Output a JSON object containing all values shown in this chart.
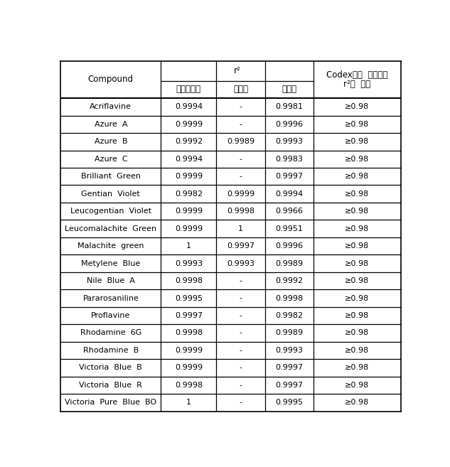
{
  "compounds": [
    "Acriflavine",
    "Azure  A",
    "Azure  B",
    "Azure  C",
    "Brilliant  Green",
    "Gentian  Violet",
    "Leucogentian  Violet",
    "Leucomalachite  Green",
    "Malachite  green",
    "Metylene  Blue",
    "Nile  Blue  A",
    "Pararosaniline",
    "Proflavine",
    "Rhodamine  6G",
    "Rhodamine  B",
    "Victoria  Blue  B",
    "Victoria  Blue  R",
    "Victoria  Pure  Blue  BO"
  ],
  "col1": [
    "0.9994",
    "0.9999",
    "0.9992",
    "0.9994",
    "0.9999",
    "0.9982",
    "0.9999",
    "0.9999",
    "1",
    "0.9993",
    "0.9998",
    "0.9995",
    "0.9997",
    "0.9998",
    "0.9999",
    "0.9999",
    "0.9998",
    "1"
  ],
  "col2": [
    "-",
    "-",
    "0.9989",
    "-",
    "-",
    "0.9999",
    "0.9998",
    "1",
    "0.9997",
    "0.9993",
    "-",
    "-",
    "-",
    "-",
    "-",
    "-",
    "-",
    "-"
  ],
  "col3": [
    "0.9981",
    "0.9996",
    "0.9993",
    "0.9983",
    "0.9997",
    "0.9994",
    "0.9966",
    "0.9951",
    "0.9996",
    "0.9989",
    "0.9992",
    "0.9998",
    "0.9982",
    "0.9989",
    "0.9993",
    "0.9997",
    "0.9997",
    "0.9995"
  ],
  "codex": [
    "≥0.98",
    "≥0.98",
    "≥0.98",
    "≥0.98",
    "≥0.98",
    "≥0.98",
    "≥0.98",
    "≥0.98",
    "≥0.98",
    "≥0.98",
    "≥0.98",
    "≥0.98",
    "≥0.98",
    "≥0.98",
    "≥0.98",
    "≥0.98",
    "≥0.98",
    "≥0.98"
  ],
  "header_compound": "Compound",
  "header_r2": "r²",
  "header_col1": "잔류물질과",
  "header_col2": "경인청",
  "header_col3": "부산청",
  "header_codex1": "Codex에서  요구하는",
  "header_codex2": "r²의  범위",
  "bg_color": "#ffffff",
  "text_color": "#000000",
  "line_color": "#000000"
}
